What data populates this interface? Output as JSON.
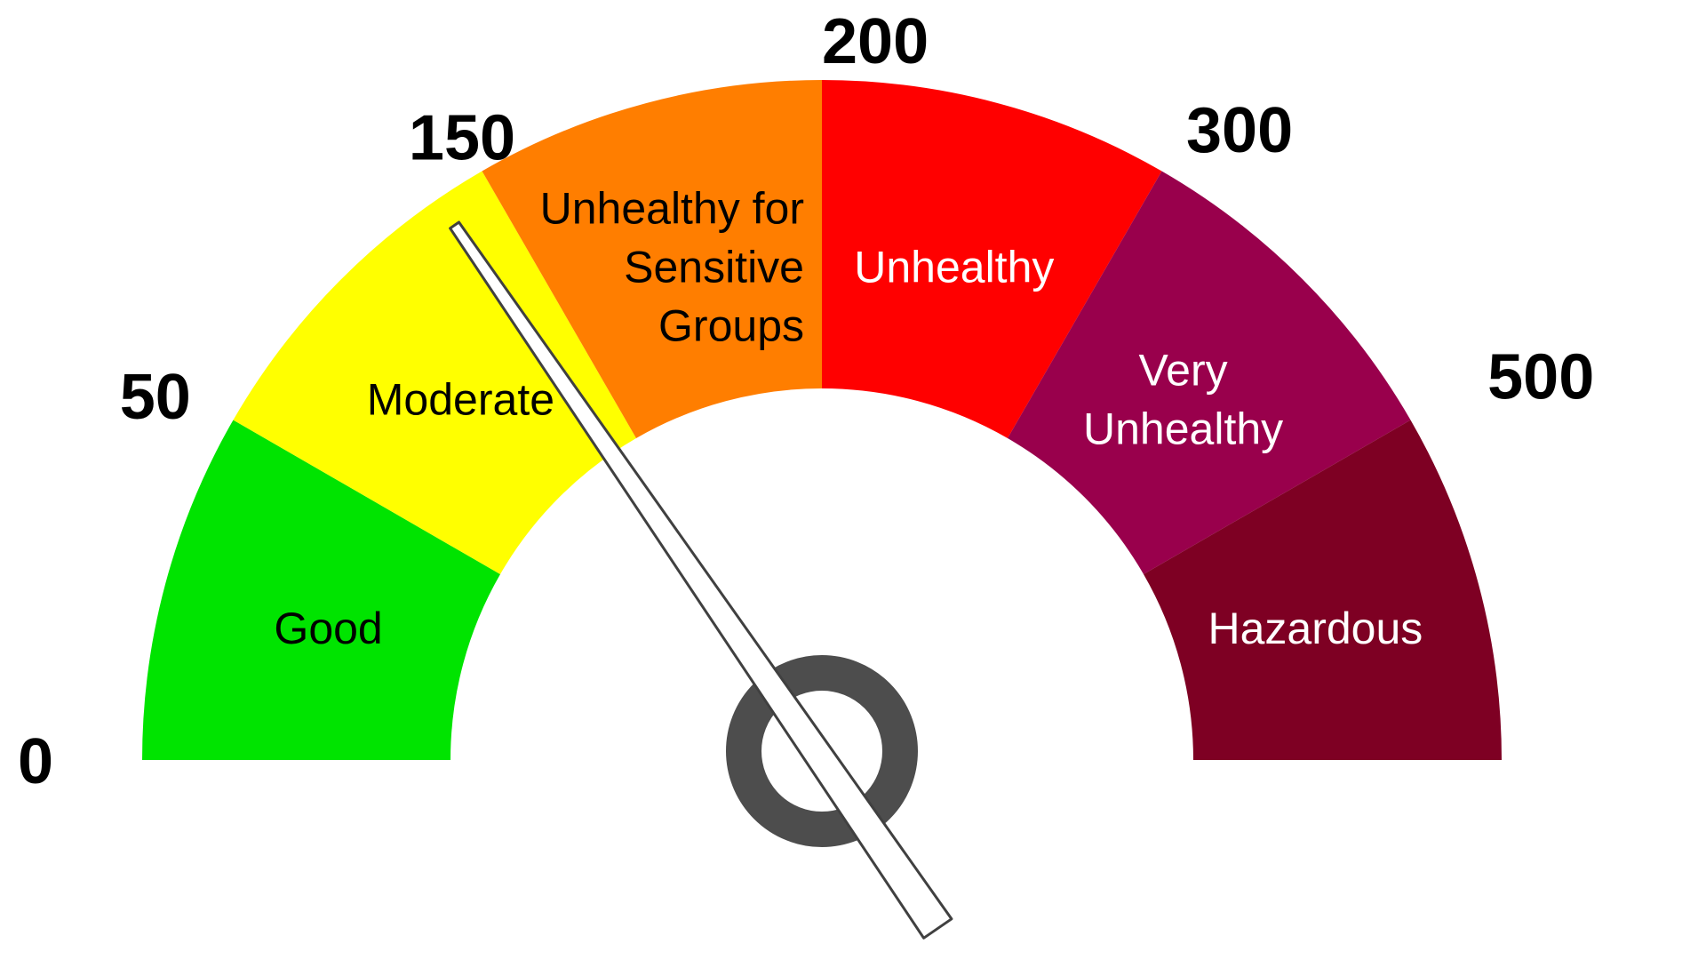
{
  "gauge": {
    "scale_ticks": [
      {
        "value": 0,
        "label": "0"
      },
      {
        "value": 50,
        "label": "50"
      },
      {
        "value": 150,
        "label": "150"
      },
      {
        "value": 200,
        "label": "200"
      },
      {
        "value": 300,
        "label": "300"
      },
      {
        "value": 500,
        "label": "500"
      }
    ],
    "bands": [
      {
        "name": "good",
        "label_lines": [
          "Good"
        ],
        "color": "#00e400",
        "text_color": "#000000"
      },
      {
        "name": "moderate",
        "label_lines": [
          "Moderate"
        ],
        "color": "#ffff00",
        "text_color": "#000000"
      },
      {
        "name": "unhealthy-for-sensitive-groups",
        "label_lines": [
          "Unhealthy for",
          "Sensitive",
          "Groups"
        ],
        "color": "#ff7e00",
        "text_color": "#000000"
      },
      {
        "name": "unhealthy",
        "label_lines": [
          "Unhealthy"
        ],
        "color": "#ff0000",
        "text_color": "#ffffff"
      },
      {
        "name": "very-unhealthy",
        "label_lines": [
          "Very",
          "Unhealthy"
        ],
        "color": "#99004c",
        "text_color": "#ffffff"
      },
      {
        "name": "hazardous",
        "label_lines": [
          "Hazardous"
        ],
        "color": "#7e0023",
        "text_color": "#ffffff"
      }
    ],
    "needle": {
      "band": "moderate",
      "position_in_band": 0.85,
      "color": "#ffffff",
      "outline_color": "#404040"
    },
    "hub_color": "#4d4d4d"
  }
}
